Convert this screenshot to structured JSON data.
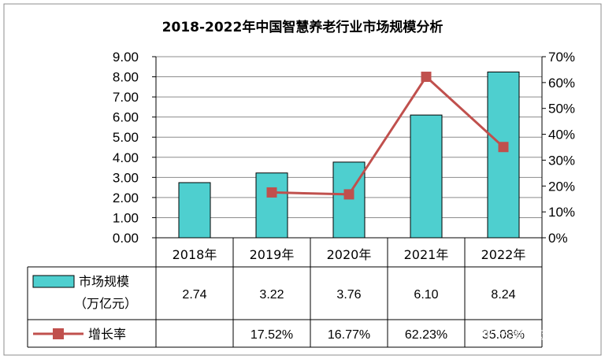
{
  "chart_data": {
    "type": "bar",
    "title": "2018-2022年中国智慧养老行业市场规模分析",
    "categories": [
      "2018年",
      "2019年",
      "2020年",
      "2021年",
      "2022年"
    ],
    "series": [
      {
        "name": "市场规模（万亿元）",
        "type": "bar",
        "axis": "left",
        "color": "#4ECFCF",
        "values": [
          2.74,
          3.22,
          3.76,
          6.1,
          8.24
        ],
        "labels": [
          "2.74",
          "3.22",
          "3.76",
          "6.10",
          "8.24"
        ]
      },
      {
        "name": "增长率",
        "type": "line",
        "axis": "right",
        "color": "#C0504D",
        "values": [
          null,
          17.52,
          16.77,
          62.23,
          35.08
        ],
        "labels": [
          "",
          "17.52%",
          "16.77%",
          "62.23%",
          "35.08%"
        ]
      }
    ],
    "y_left": {
      "range": [
        0,
        9
      ],
      "ticks": [
        "0.00",
        "1.00",
        "2.00",
        "3.00",
        "4.00",
        "5.00",
        "6.00",
        "7.00",
        "8.00",
        "9.00"
      ]
    },
    "y_right": {
      "range": [
        0,
        70
      ],
      "ticks": [
        "0%",
        "10%",
        "20%",
        "30%",
        "40%",
        "50%",
        "60%",
        "70%"
      ]
    },
    "legend_placement": "data table below chart",
    "grid": "horizontal"
  },
  "legend": {
    "bar_line1": "市场规模",
    "bar_line2": "（万亿元）",
    "line": "增长率"
  },
  "watermark": "知乎 @银龄网李地"
}
